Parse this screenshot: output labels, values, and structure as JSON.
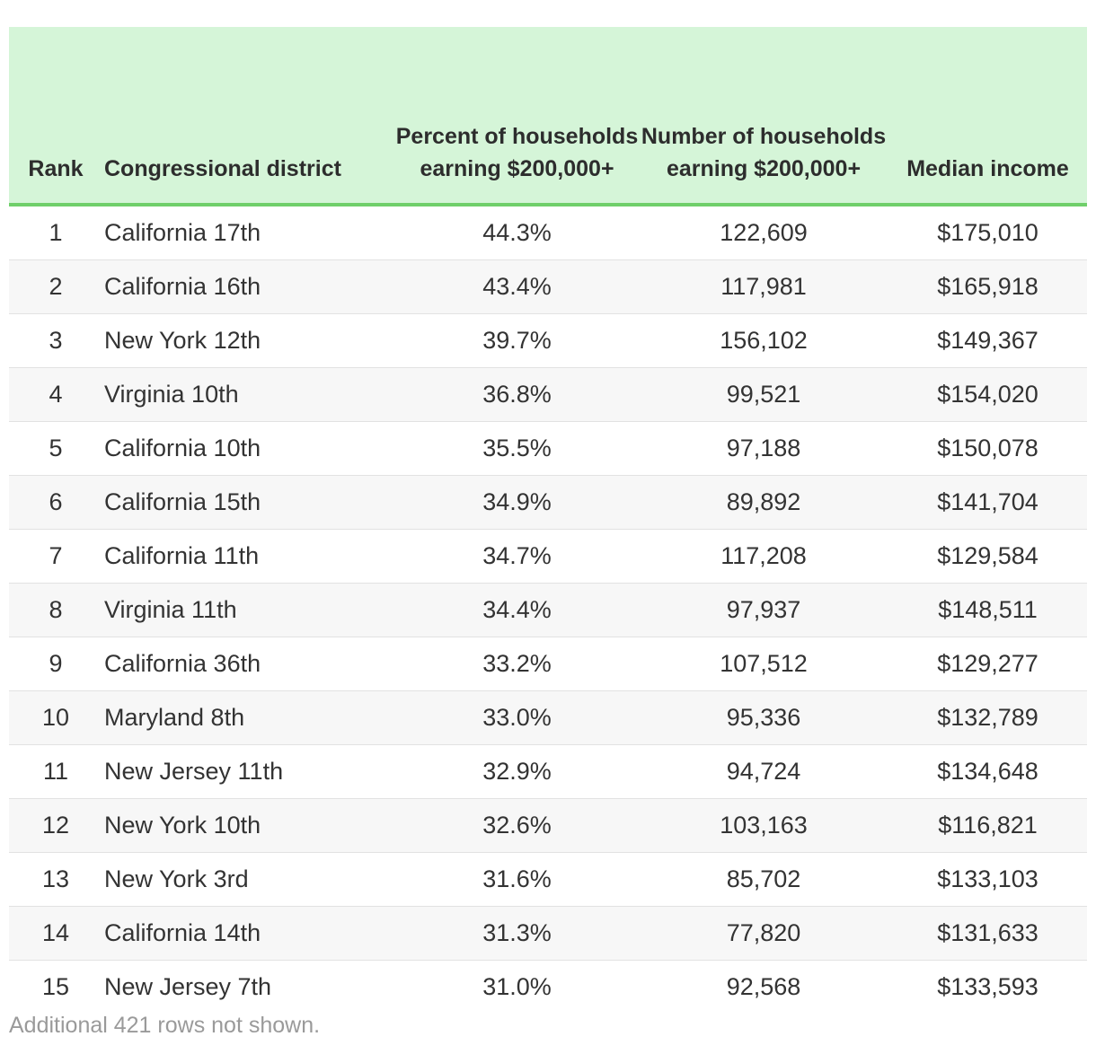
{
  "table": {
    "headers": {
      "rank": "Rank",
      "district": "Congressional district",
      "percent": "Percent of households earning $200,000+",
      "number": "Number of households earning $200,000+",
      "median": "Median income"
    },
    "rows": [
      {
        "rank": "1",
        "district": "California 17th",
        "percent": "44.3%",
        "number": "122,609",
        "median": "$175,010"
      },
      {
        "rank": "2",
        "district": "California 16th",
        "percent": "43.4%",
        "number": "117,981",
        "median": "$165,918"
      },
      {
        "rank": "3",
        "district": "New York 12th",
        "percent": "39.7%",
        "number": "156,102",
        "median": "$149,367"
      },
      {
        "rank": "4",
        "district": "Virginia 10th",
        "percent": "36.8%",
        "number": "99,521",
        "median": "$154,020"
      },
      {
        "rank": "5",
        "district": "California 10th",
        "percent": "35.5%",
        "number": "97,188",
        "median": "$150,078"
      },
      {
        "rank": "6",
        "district": "California 15th",
        "percent": "34.9%",
        "number": "89,892",
        "median": "$141,704"
      },
      {
        "rank": "7",
        "district": "California 11th",
        "percent": "34.7%",
        "number": "117,208",
        "median": "$129,584"
      },
      {
        "rank": "8",
        "district": "Virginia 11th",
        "percent": "34.4%",
        "number": "97,937",
        "median": "$148,511"
      },
      {
        "rank": "9",
        "district": "California 36th",
        "percent": "33.2%",
        "number": "107,512",
        "median": "$129,277"
      },
      {
        "rank": "10",
        "district": "Maryland 8th",
        "percent": "33.0%",
        "number": "95,336",
        "median": "$132,789"
      },
      {
        "rank": "11",
        "district": "New Jersey 11th",
        "percent": "32.9%",
        "number": "94,724",
        "median": "$134,648"
      },
      {
        "rank": "12",
        "district": "New York 10th",
        "percent": "32.6%",
        "number": "103,163",
        "median": "$116,821"
      },
      {
        "rank": "13",
        "district": "New York 3rd",
        "percent": "31.6%",
        "number": "85,702",
        "median": "$133,103"
      },
      {
        "rank": "14",
        "district": "California 14th",
        "percent": "31.3%",
        "number": "77,820",
        "median": "$131,633"
      },
      {
        "rank": "15",
        "district": "New Jersey 7th",
        "percent": "31.0%",
        "number": "92,568",
        "median": "$133,593"
      }
    ]
  },
  "footnote": "Additional 421 rows not shown.",
  "colors": {
    "header_bg": "#d5f5d8",
    "header_rule": "#6fcf6a",
    "stripe": "#f7f7f7",
    "footnote": "#9a9a9a"
  }
}
